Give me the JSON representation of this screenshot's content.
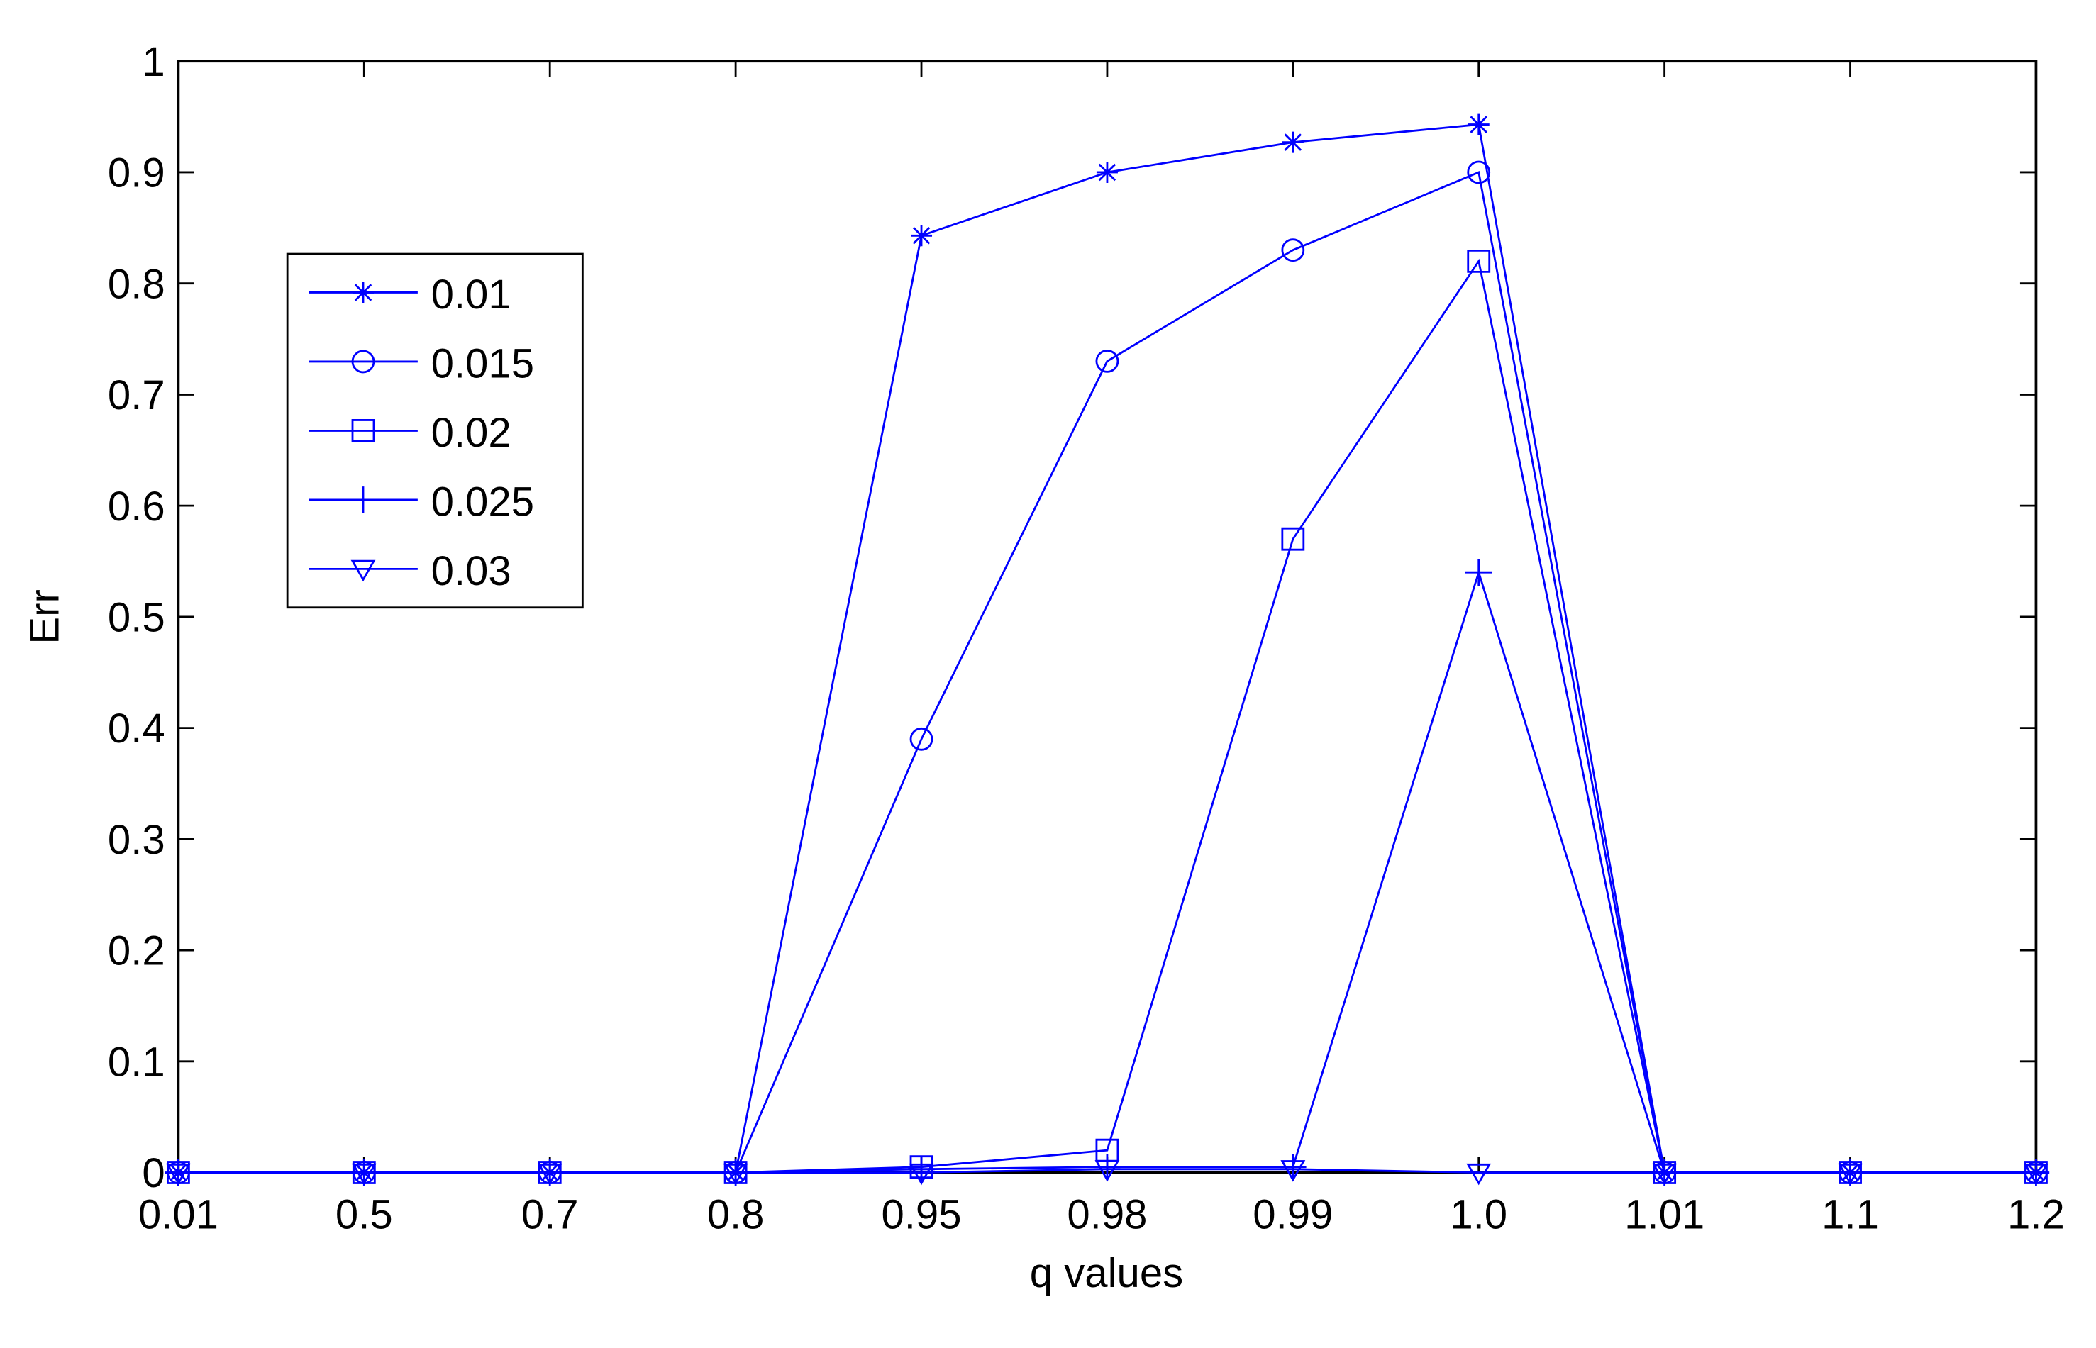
{
  "chart_data": {
    "type": "line",
    "x_label": "q values",
    "y_label": "Err",
    "categories": [
      "0.01",
      "0.5",
      "0.7",
      "0.8",
      "0.95",
      "0.98",
      "0.99",
      "1.0",
      "1.01",
      "1.1",
      "1.2"
    ],
    "series": [
      {
        "name": "0.01",
        "color": "#0000ff",
        "marker": "star",
        "values": [
          0,
          0,
          0,
          0,
          0.843,
          0.9,
          0.927,
          0.943,
          0,
          0,
          0
        ]
      },
      {
        "name": "0.015",
        "color": "#0000ff",
        "marker": "circle",
        "values": [
          0,
          0,
          0,
          0,
          0.39,
          0.73,
          0.83,
          0.9,
          0,
          0,
          0
        ]
      },
      {
        "name": "0.02",
        "color": "#0000ff",
        "marker": "square",
        "values": [
          0,
          0,
          0,
          0,
          0.005,
          0.02,
          0.57,
          0.82,
          0,
          0,
          0
        ]
      },
      {
        "name": "0.025",
        "color": "#0000ff",
        "marker": "plus",
        "values": [
          0,
          0,
          0,
          0,
          0.003,
          0.005,
          0.005,
          0.54,
          0,
          0,
          0
        ]
      },
      {
        "name": "0.03",
        "color": "#0000ff",
        "marker": "triangle-down",
        "values": [
          0,
          0,
          0,
          0,
          0,
          0.003,
          0.003,
          0,
          0,
          0,
          0
        ]
      }
    ],
    "ylim": [
      0,
      1
    ],
    "yticks": [
      0,
      0.1,
      0.2,
      0.3,
      0.4,
      0.5,
      0.6,
      0.7,
      0.8,
      0.9,
      1
    ],
    "grid": false,
    "legend": "upper left"
  }
}
